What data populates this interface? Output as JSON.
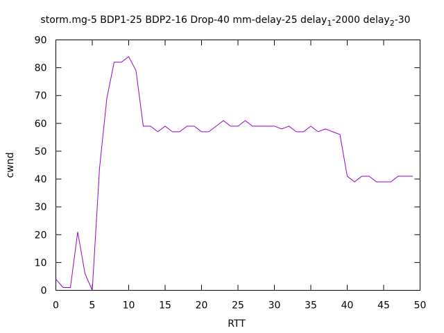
{
  "chart_data": {
    "type": "line",
    "title": {
      "main": "storm.mg-5 BDP1-25 BDP2-16 Drop-40 mm-delay-25 delay",
      "sub1": "1",
      "mid": "-2000 delay",
      "sub2": "2",
      "end": "-30"
    },
    "xlabel": "RTT",
    "ylabel": "cwnd",
    "xlim": [
      0,
      50
    ],
    "ylim": [
      0,
      90
    ],
    "xticks": [
      "0",
      "5",
      "10",
      "15",
      "20",
      "25",
      "30",
      "35",
      "40",
      "45",
      "50"
    ],
    "yticks": [
      "0",
      "10",
      "20",
      "30",
      "40",
      "50",
      "60",
      "70",
      "80",
      "90"
    ],
    "grid": false,
    "color": "#9400d3",
    "series": [
      {
        "x": [
          0,
          1,
          2,
          3,
          4,
          5,
          6,
          7,
          8,
          9,
          10,
          11,
          12,
          13,
          14,
          15,
          16,
          17,
          18,
          19,
          20,
          21,
          22,
          23,
          24,
          25,
          26,
          27,
          28,
          29,
          30,
          31,
          32,
          33,
          34,
          35,
          36,
          37,
          38,
          39,
          40,
          41,
          42,
          43,
          44,
          45,
          46,
          47,
          48,
          49
        ],
        "values": [
          4,
          1,
          1,
          21,
          6,
          0,
          44,
          69,
          82,
          82,
          84,
          79,
          59,
          59,
          57,
          59,
          57,
          57,
          59,
          59,
          57,
          57,
          59,
          61,
          59,
          59,
          61,
          59,
          59,
          59,
          59,
          58,
          59,
          57,
          57,
          59,
          57,
          58,
          57,
          56,
          41,
          39,
          41,
          41,
          39,
          39,
          39,
          41,
          41,
          41
        ]
      }
    ]
  }
}
